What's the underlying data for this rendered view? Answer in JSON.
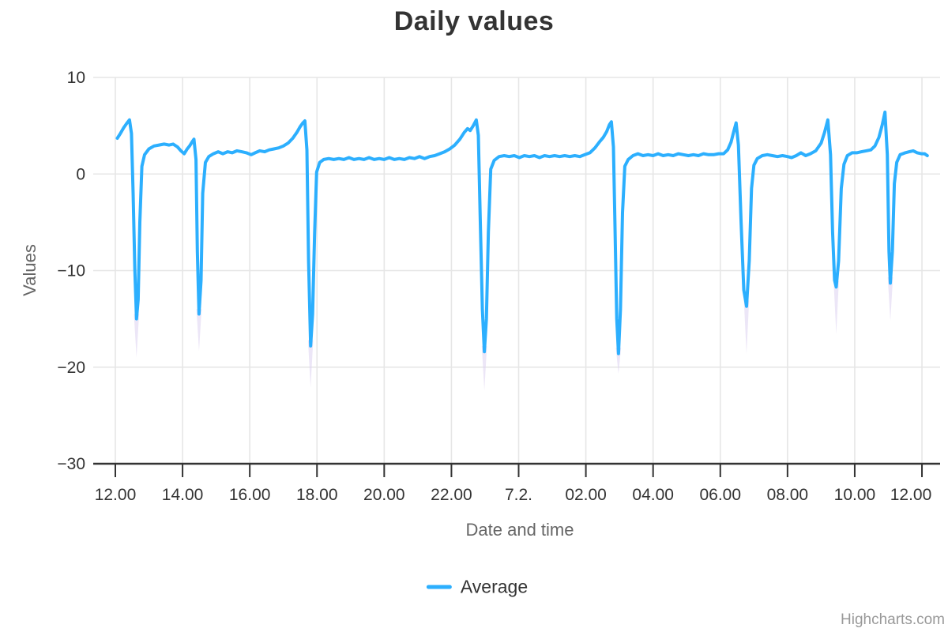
{
  "chart": {
    "credit": "Highcharts.com"
  },
  "chart_data": {
    "type": "line",
    "title": "Daily values",
    "xlabel": "Date and time",
    "ylabel": "Values",
    "x_unit": "hours after the first 12.00 tick",
    "x_range": [
      -0.658,
      24.54
    ],
    "y_range": [
      -30,
      10
    ],
    "grid": true,
    "legend_position": "bottom",
    "style": {
      "background": "#FFFFFF",
      "grid_color": "#E6E6E6",
      "axis_color": "#333333",
      "label_color": "#333333",
      "axis_title_color": "#666666",
      "fade_tail_color": "#DCD2F0"
    },
    "x_ticks": [
      {
        "h": 0,
        "label": "12.00"
      },
      {
        "h": 2,
        "label": "14.00"
      },
      {
        "h": 4,
        "label": "16.00"
      },
      {
        "h": 6,
        "label": "18.00"
      },
      {
        "h": 8,
        "label": "20.00"
      },
      {
        "h": 10,
        "label": "22.00"
      },
      {
        "h": 12,
        "label": "7.2."
      },
      {
        "h": 14,
        "label": "02.00"
      },
      {
        "h": 16,
        "label": "04.00"
      },
      {
        "h": 18,
        "label": "06.00"
      },
      {
        "h": 20,
        "label": "08.00"
      },
      {
        "h": 22,
        "label": "10.00"
      },
      {
        "h": 24,
        "label": "12.00"
      }
    ],
    "y_ticks": [
      {
        "v": 10,
        "label": "10"
      },
      {
        "v": 0,
        "label": "0"
      },
      {
        "v": -10,
        "label": "−10"
      },
      {
        "v": -20,
        "label": "−20"
      },
      {
        "v": -30,
        "label": "−30"
      }
    ],
    "series": [
      {
        "name": "Average",
        "color": "#2CAFFE",
        "line_width": 4,
        "points": [
          [
            0.06,
            3.7
          ],
          [
            0.15,
            4.2
          ],
          [
            0.25,
            4.8
          ],
          [
            0.35,
            5.3
          ],
          [
            0.42,
            5.6
          ],
          [
            0.48,
            4.2
          ],
          [
            0.53,
            -2.0
          ],
          [
            0.58,
            -10.0
          ],
          [
            0.63,
            -15.0
          ],
          [
            0.68,
            -13.0
          ],
          [
            0.73,
            -5.0
          ],
          [
            0.79,
            0.8
          ],
          [
            0.87,
            2.0
          ],
          [
            1.0,
            2.6
          ],
          [
            1.15,
            2.9
          ],
          [
            1.3,
            3.0
          ],
          [
            1.45,
            3.1
          ],
          [
            1.6,
            3.0
          ],
          [
            1.72,
            3.1
          ],
          [
            1.85,
            2.8
          ],
          [
            1.95,
            2.4
          ],
          [
            2.05,
            2.1
          ],
          [
            2.14,
            2.6
          ],
          [
            2.21,
            2.9
          ],
          [
            2.28,
            3.3
          ],
          [
            2.34,
            3.6
          ],
          [
            2.4,
            1.5
          ],
          [
            2.44,
            -8.0
          ],
          [
            2.49,
            -14.5
          ],
          [
            2.55,
            -11.0
          ],
          [
            2.6,
            -2.0
          ],
          [
            2.68,
            1.2
          ],
          [
            2.78,
            1.8
          ],
          [
            2.92,
            2.1
          ],
          [
            3.06,
            2.3
          ],
          [
            3.2,
            2.1
          ],
          [
            3.34,
            2.3
          ],
          [
            3.48,
            2.2
          ],
          [
            3.62,
            2.4
          ],
          [
            3.76,
            2.3
          ],
          [
            3.9,
            2.2
          ],
          [
            4.04,
            2.0
          ],
          [
            4.16,
            2.2
          ],
          [
            4.3,
            2.4
          ],
          [
            4.44,
            2.3
          ],
          [
            4.58,
            2.5
          ],
          [
            4.72,
            2.6
          ],
          [
            4.86,
            2.7
          ],
          [
            5.0,
            2.9
          ],
          [
            5.14,
            3.2
          ],
          [
            5.28,
            3.7
          ],
          [
            5.4,
            4.3
          ],
          [
            5.5,
            4.9
          ],
          [
            5.58,
            5.3
          ],
          [
            5.64,
            5.5
          ],
          [
            5.7,
            2.5
          ],
          [
            5.75,
            -9.0
          ],
          [
            5.81,
            -17.8
          ],
          [
            5.87,
            -14.5
          ],
          [
            5.93,
            -6.0
          ],
          [
            5.99,
            0.2
          ],
          [
            6.08,
            1.2
          ],
          [
            6.2,
            1.5
          ],
          [
            6.35,
            1.6
          ],
          [
            6.5,
            1.5
          ],
          [
            6.65,
            1.6
          ],
          [
            6.8,
            1.5
          ],
          [
            6.95,
            1.7
          ],
          [
            7.1,
            1.5
          ],
          [
            7.25,
            1.6
          ],
          [
            7.4,
            1.5
          ],
          [
            7.55,
            1.7
          ],
          [
            7.7,
            1.5
          ],
          [
            7.85,
            1.6
          ],
          [
            8.0,
            1.5
          ],
          [
            8.15,
            1.7
          ],
          [
            8.3,
            1.5
          ],
          [
            8.45,
            1.6
          ],
          [
            8.6,
            1.5
          ],
          [
            8.75,
            1.7
          ],
          [
            8.9,
            1.6
          ],
          [
            9.05,
            1.8
          ],
          [
            9.2,
            1.6
          ],
          [
            9.35,
            1.8
          ],
          [
            9.5,
            1.9
          ],
          [
            9.65,
            2.1
          ],
          [
            9.8,
            2.3
          ],
          [
            9.95,
            2.6
          ],
          [
            10.1,
            3.0
          ],
          [
            10.25,
            3.6
          ],
          [
            10.38,
            4.3
          ],
          [
            10.48,
            4.7
          ],
          [
            10.56,
            4.5
          ],
          [
            10.65,
            5.0
          ],
          [
            10.74,
            5.6
          ],
          [
            10.8,
            4.0
          ],
          [
            10.86,
            -5.0
          ],
          [
            10.92,
            -14.0
          ],
          [
            10.98,
            -18.4
          ],
          [
            11.04,
            -15.0
          ],
          [
            11.1,
            -6.0
          ],
          [
            11.17,
            0.5
          ],
          [
            11.27,
            1.4
          ],
          [
            11.42,
            1.8
          ],
          [
            11.57,
            1.9
          ],
          [
            11.72,
            1.8
          ],
          [
            11.87,
            1.9
          ],
          [
            12.02,
            1.7
          ],
          [
            12.17,
            1.9
          ],
          [
            12.32,
            1.8
          ],
          [
            12.47,
            1.9
          ],
          [
            12.62,
            1.7
          ],
          [
            12.77,
            1.9
          ],
          [
            12.92,
            1.8
          ],
          [
            13.07,
            1.9
          ],
          [
            13.22,
            1.8
          ],
          [
            13.37,
            1.9
          ],
          [
            13.52,
            1.8
          ],
          [
            13.67,
            1.9
          ],
          [
            13.82,
            1.8
          ],
          [
            13.97,
            2.0
          ],
          [
            14.12,
            2.2
          ],
          [
            14.27,
            2.7
          ],
          [
            14.4,
            3.3
          ],
          [
            14.52,
            3.8
          ],
          [
            14.62,
            4.4
          ],
          [
            14.7,
            5.1
          ],
          [
            14.76,
            5.4
          ],
          [
            14.82,
            2.8
          ],
          [
            14.87,
            -6.0
          ],
          [
            14.92,
            -15.0
          ],
          [
            14.97,
            -18.6
          ],
          [
            15.03,
            -14.0
          ],
          [
            15.09,
            -4.0
          ],
          [
            15.16,
            0.8
          ],
          [
            15.26,
            1.5
          ],
          [
            15.4,
            1.9
          ],
          [
            15.55,
            2.1
          ],
          [
            15.7,
            1.9
          ],
          [
            15.85,
            2.0
          ],
          [
            16.0,
            1.9
          ],
          [
            16.15,
            2.1
          ],
          [
            16.3,
            1.9
          ],
          [
            16.45,
            2.0
          ],
          [
            16.6,
            1.9
          ],
          [
            16.75,
            2.1
          ],
          [
            16.9,
            2.0
          ],
          [
            17.05,
            1.9
          ],
          [
            17.2,
            2.0
          ],
          [
            17.35,
            1.9
          ],
          [
            17.5,
            2.1
          ],
          [
            17.65,
            2.0
          ],
          [
            17.8,
            2.0
          ],
          [
            17.95,
            2.1
          ],
          [
            18.1,
            2.1
          ],
          [
            18.22,
            2.5
          ],
          [
            18.32,
            3.3
          ],
          [
            18.4,
            4.4
          ],
          [
            18.47,
            5.3
          ],
          [
            18.54,
            3.0
          ],
          [
            18.62,
            -5.0
          ],
          [
            18.7,
            -12.0
          ],
          [
            18.78,
            -13.7
          ],
          [
            18.86,
            -9.0
          ],
          [
            18.93,
            -1.5
          ],
          [
            19.0,
            0.9
          ],
          [
            19.1,
            1.6
          ],
          [
            19.25,
            1.9
          ],
          [
            19.4,
            2.0
          ],
          [
            19.55,
            1.9
          ],
          [
            19.7,
            1.8
          ],
          [
            19.85,
            1.9
          ],
          [
            20.0,
            1.8
          ],
          [
            20.12,
            1.7
          ],
          [
            20.26,
            1.9
          ],
          [
            20.4,
            2.2
          ],
          [
            20.54,
            1.9
          ],
          [
            20.68,
            2.1
          ],
          [
            20.84,
            2.4
          ],
          [
            21.0,
            3.2
          ],
          [
            21.1,
            4.3
          ],
          [
            21.2,
            5.6
          ],
          [
            21.28,
            2.0
          ],
          [
            21.34,
            -6.0
          ],
          [
            21.4,
            -11.0
          ],
          [
            21.45,
            -11.7
          ],
          [
            21.52,
            -9.0
          ],
          [
            21.6,
            -1.5
          ],
          [
            21.68,
            1.0
          ],
          [
            21.78,
            1.9
          ],
          [
            21.92,
            2.2
          ],
          [
            22.06,
            2.2
          ],
          [
            22.2,
            2.3
          ],
          [
            22.34,
            2.4
          ],
          [
            22.48,
            2.5
          ],
          [
            22.6,
            2.9
          ],
          [
            22.72,
            3.8
          ],
          [
            22.82,
            5.1
          ],
          [
            22.9,
            6.4
          ],
          [
            22.97,
            2.0
          ],
          [
            23.02,
            -8.0
          ],
          [
            23.06,
            -11.3
          ],
          [
            23.12,
            -8.0
          ],
          [
            23.18,
            -1.0
          ],
          [
            23.25,
            1.2
          ],
          [
            23.35,
            2.0
          ],
          [
            23.5,
            2.2
          ],
          [
            23.62,
            2.3
          ],
          [
            23.74,
            2.4
          ],
          [
            23.86,
            2.2
          ],
          [
            23.98,
            2.1
          ],
          [
            24.08,
            2.1
          ],
          [
            24.16,
            1.9
          ]
        ]
      }
    ],
    "fade_tails": [
      {
        "h": 0.63,
        "from": -14.5,
        "to": -19.0
      },
      {
        "h": 2.49,
        "from": -14.0,
        "to": -18.3
      },
      {
        "h": 5.81,
        "from": -17.2,
        "to": -22.1
      },
      {
        "h": 10.98,
        "from": -17.8,
        "to": -22.4
      },
      {
        "h": 14.97,
        "from": -18.0,
        "to": -20.7
      },
      {
        "h": 18.78,
        "from": -13.1,
        "to": -18.6
      },
      {
        "h": 21.45,
        "from": -11.1,
        "to": -16.6
      },
      {
        "h": 23.06,
        "from": -10.7,
        "to": -15.2
      }
    ]
  }
}
